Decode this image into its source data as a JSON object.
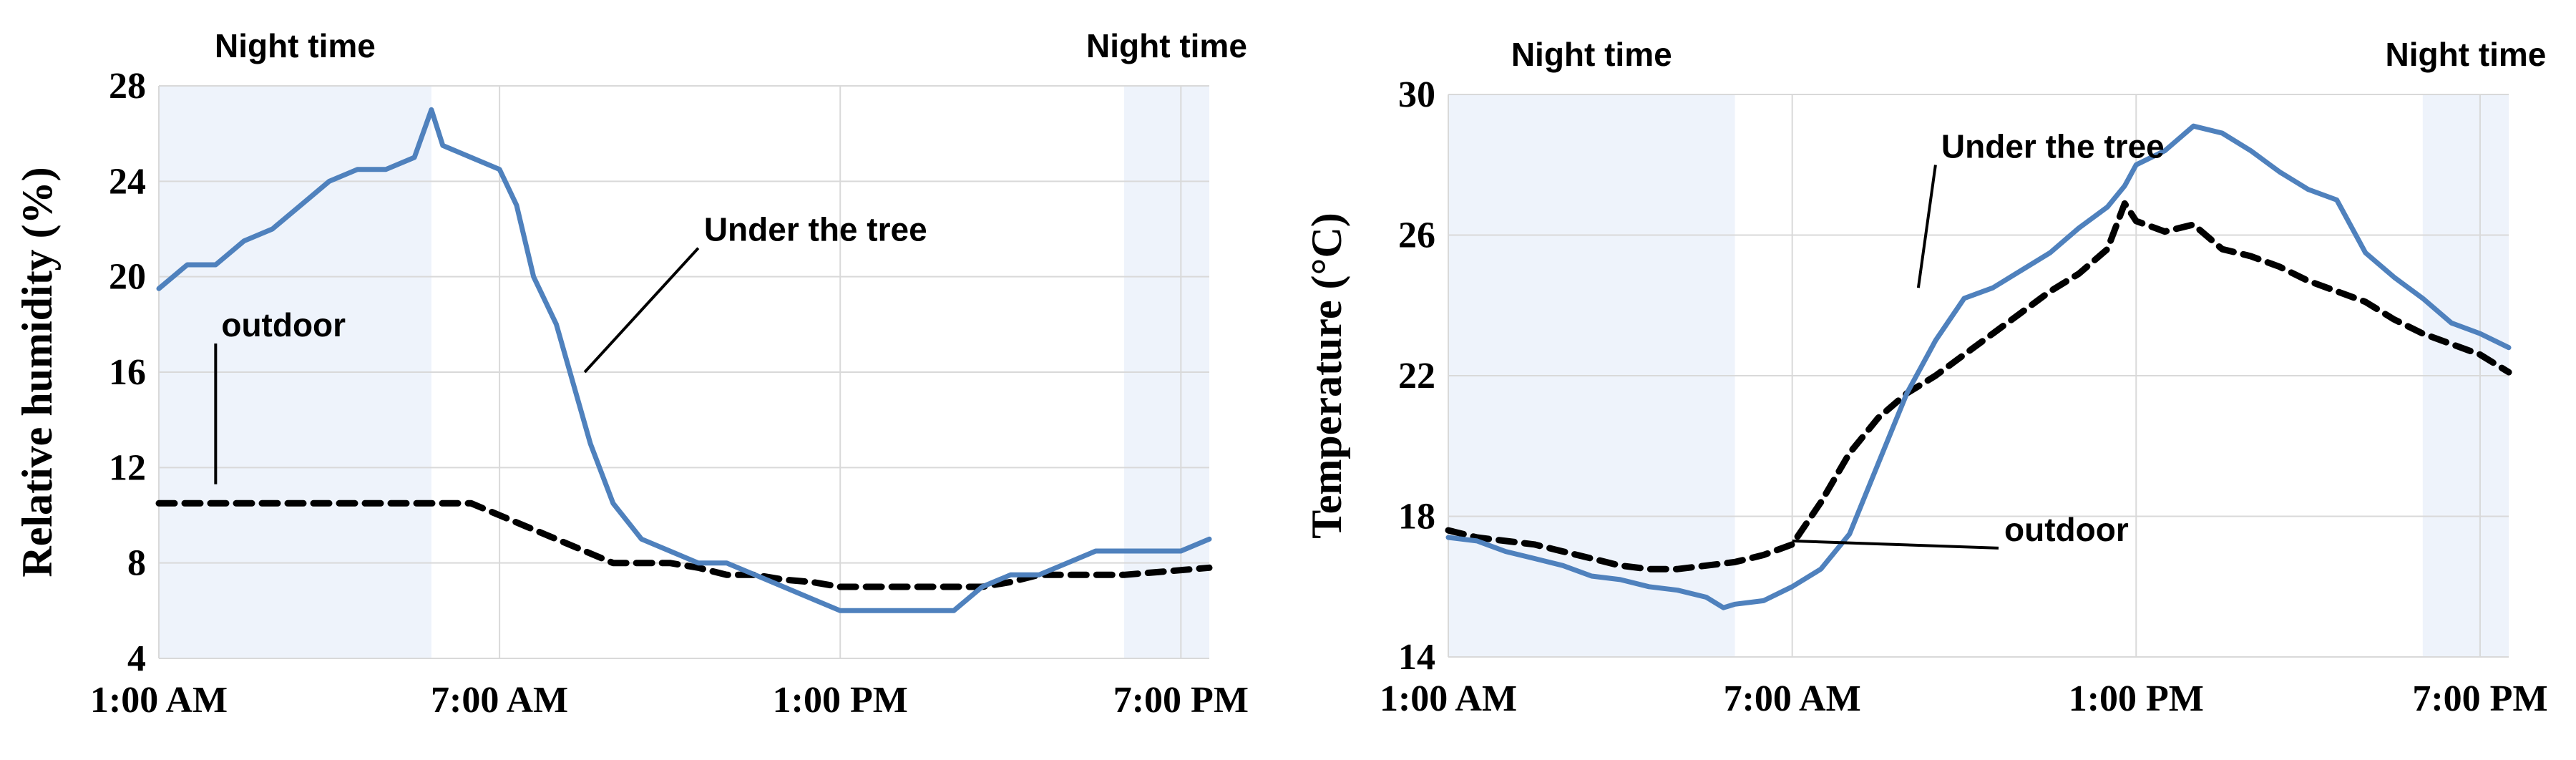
{
  "chart_data": [
    {
      "type": "line",
      "ylabel": "Relative humidity (%)",
      "xlabel": "",
      "xlim": [
        1,
        19.5
      ],
      "ylim": [
        4,
        28
      ],
      "yticks": [
        4,
        8,
        12,
        16,
        20,
        24,
        28
      ],
      "xticks": [
        {
          "hour": 1,
          "label": "1:00 AM"
        },
        {
          "hour": 7,
          "label": "7:00 AM"
        },
        {
          "hour": 13,
          "label": "1:00 PM"
        },
        {
          "hour": 19,
          "label": "7:00 PM"
        }
      ],
      "night_bands": [
        {
          "from": 1,
          "to": 5.8,
          "label": "Night time"
        },
        {
          "from": 18,
          "to": 19.5,
          "label": "Night time"
        }
      ],
      "grid": true,
      "series": [
        {
          "name": "Under the tree",
          "style": "solid",
          "color": "#4f81bd",
          "x": [
            1.0,
            1.5,
            2.0,
            2.5,
            3.0,
            3.5,
            4.0,
            4.5,
            5.0,
            5.5,
            5.8,
            6.0,
            6.5,
            7.0,
            7.3,
            7.6,
            8.0,
            8.3,
            8.6,
            9.0,
            9.5,
            10.0,
            10.5,
            11.0,
            11.5,
            12.0,
            12.5,
            13.0,
            13.5,
            14.0,
            14.5,
            15.0,
            15.5,
            16.0,
            16.5,
            17.0,
            17.5,
            18.0,
            18.5,
            19.0,
            19.5
          ],
          "y": [
            19.5,
            20.5,
            20.5,
            21.5,
            22.0,
            23.0,
            24.0,
            24.5,
            24.5,
            25.0,
            27.0,
            25.5,
            25.0,
            24.5,
            23.0,
            20.0,
            18.0,
            15.5,
            13.0,
            10.5,
            9.0,
            8.5,
            8.0,
            8.0,
            7.5,
            7.0,
            6.5,
            6.0,
            6.0,
            6.0,
            6.0,
            6.0,
            7.0,
            7.5,
            7.5,
            8.0,
            8.5,
            8.5,
            8.5,
            8.5,
            9.0
          ]
        },
        {
          "name": "outdoor",
          "style": "dashed",
          "color": "#000000",
          "x": [
            1.0,
            2.0,
            3.0,
            4.0,
            5.0,
            5.8,
            6.5,
            7.0,
            7.5,
            8.0,
            8.5,
            9.0,
            9.5,
            10.0,
            10.5,
            11.0,
            11.5,
            12.0,
            12.5,
            13.0,
            13.5,
            14.0,
            14.5,
            15.0,
            15.5,
            16.0,
            16.5,
            17.0,
            17.5,
            18.0,
            18.5,
            19.0,
            19.5
          ],
          "y": [
            10.5,
            10.5,
            10.5,
            10.5,
            10.5,
            10.5,
            10.5,
            10.0,
            9.5,
            9.0,
            8.5,
            8.0,
            8.0,
            8.0,
            7.8,
            7.5,
            7.5,
            7.3,
            7.2,
            7.0,
            7.0,
            7.0,
            7.0,
            7.0,
            7.0,
            7.2,
            7.5,
            7.5,
            7.5,
            7.5,
            7.6,
            7.7,
            7.8
          ]
        }
      ],
      "annotations": [
        {
          "text": "Under the tree",
          "x": 8.5,
          "y": 16,
          "text_x": 10.5,
          "text_y": 21.5
        },
        {
          "text": "outdoor",
          "x": 2.0,
          "y": 11.3,
          "text_x": 2.0,
          "text_y": 17.5
        }
      ]
    },
    {
      "type": "line",
      "ylabel": "Temperature  (°C)",
      "xlabel": "",
      "xlim": [
        1,
        19.5
      ],
      "ylim": [
        14,
        30
      ],
      "yticks": [
        14,
        18,
        22,
        26,
        30
      ],
      "xticks": [
        {
          "hour": 1,
          "label": "1:00 AM"
        },
        {
          "hour": 7,
          "label": "7:00 AM"
        },
        {
          "hour": 13,
          "label": "1:00 PM"
        },
        {
          "hour": 19,
          "label": "7:00 PM"
        }
      ],
      "night_bands": [
        {
          "from": 1,
          "to": 6,
          "label": "Night time"
        },
        {
          "from": 18,
          "to": 19.5,
          "label": "Night time"
        }
      ],
      "grid": true,
      "series": [
        {
          "name": "Under the tree",
          "style": "solid",
          "color": "#4f81bd",
          "x": [
            1.0,
            1.5,
            2.0,
            2.5,
            3.0,
            3.5,
            4.0,
            4.5,
            5.0,
            5.5,
            5.8,
            6.0,
            6.5,
            7.0,
            7.5,
            8.0,
            8.5,
            9.0,
            9.5,
            10.0,
            10.5,
            11.0,
            11.5,
            12.0,
            12.5,
            12.8,
            13.0,
            13.5,
            14.0,
            14.5,
            15.0,
            15.5,
            16.0,
            16.5,
            17.0,
            17.5,
            18.0,
            18.5,
            19.0,
            19.5
          ],
          "y": [
            17.4,
            17.3,
            17.0,
            16.8,
            16.6,
            16.3,
            16.2,
            16.0,
            15.9,
            15.7,
            15.4,
            15.5,
            15.6,
            16.0,
            16.5,
            17.5,
            19.5,
            21.5,
            23.0,
            24.2,
            24.5,
            25.0,
            25.5,
            26.2,
            26.8,
            27.4,
            28.0,
            28.4,
            29.1,
            28.9,
            28.4,
            27.8,
            27.3,
            27.0,
            25.5,
            24.8,
            24.2,
            23.5,
            23.2,
            22.8
          ]
        },
        {
          "name": "outdoor",
          "style": "dashed",
          "color": "#000000",
          "x": [
            1.0,
            1.5,
            2.0,
            2.5,
            3.0,
            3.5,
            4.0,
            4.5,
            5.0,
            5.5,
            6.0,
            6.5,
            7.0,
            7.5,
            8.0,
            8.5,
            9.0,
            9.5,
            10.0,
            10.5,
            11.0,
            11.5,
            12.0,
            12.5,
            12.8,
            13.0,
            13.5,
            14.0,
            14.5,
            15.0,
            15.5,
            16.0,
            16.5,
            17.0,
            17.5,
            18.0,
            18.5,
            19.0,
            19.5
          ],
          "y": [
            17.6,
            17.4,
            17.3,
            17.2,
            17.0,
            16.8,
            16.6,
            16.5,
            16.5,
            16.6,
            16.7,
            16.9,
            17.2,
            18.4,
            19.8,
            20.8,
            21.5,
            22.0,
            22.6,
            23.2,
            23.8,
            24.4,
            24.9,
            25.6,
            26.9,
            26.4,
            26.1,
            26.3,
            25.6,
            25.4,
            25.1,
            24.7,
            24.4,
            24.1,
            23.6,
            23.2,
            22.9,
            22.6,
            22.1
          ]
        }
      ],
      "annotations": [
        {
          "text": "Under the tree",
          "x": 9.2,
          "y": 24.5,
          "text_x": 9.5,
          "text_y": 28.2
        },
        {
          "text": "outdoor",
          "x": 7.0,
          "y": 17.3,
          "text_x": 10.6,
          "text_y": 17.3
        }
      ]
    }
  ]
}
